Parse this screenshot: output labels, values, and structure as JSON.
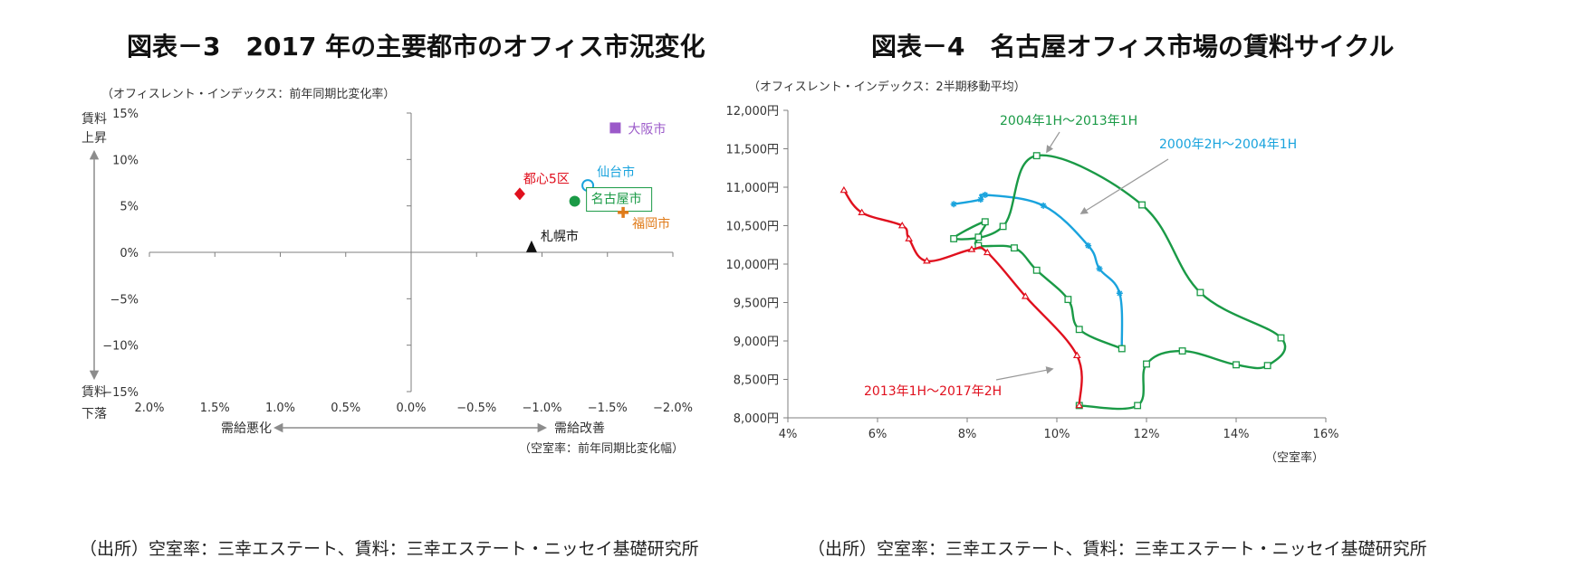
{
  "panels": {
    "left": {
      "title": "図表－3　2017 年の主要都市のオフィス市況変化",
      "source": "（出所）空室率：三幸エステート、賃料：三幸エステート・ニッセイ基礎研究所"
    },
    "right": {
      "title": "図表－4　名古屋オフィス市場の賃料サイクル",
      "source": "（出所）空室率：三幸エステート、賃料：三幸エステート・ニッセイ基礎研究所"
    }
  },
  "colors": {
    "red": "#e0101e",
    "green": "#1a9a46",
    "blue": "#19a3dd",
    "purple": "#9b59c9",
    "orange": "#e07b1a",
    "black": "#111111",
    "axis": "#7f7f7f",
    "arrow": "#8c8c8c"
  },
  "chart_data": [
    {
      "type": "scatter",
      "title": "",
      "ylabel": "（オフィスレント・インデックス：前年同期比変化率）",
      "xlabel": "（空室率：前年同期比変化幅）",
      "xlim": [
        2.0,
        -2.0
      ],
      "ylim": [
        -15,
        15
      ],
      "x_ticks": [
        2.0,
        1.5,
        1.0,
        0.5,
        0.0,
        -0.5,
        -1.0,
        -1.5,
        -2.0
      ],
      "x_tick_labels": [
        "2.0%",
        "1.5%",
        "1.0%",
        "0.5%",
        "0.0%",
        "−0.5%",
        "−1.0%",
        "−1.5%",
        "−2.0%"
      ],
      "y_ticks": [
        15,
        10,
        5,
        0,
        -5,
        -10,
        -15
      ],
      "y_tick_labels": [
        "15%",
        "10%",
        "5%",
        "0%",
        "−5%",
        "−10%",
        "−15%"
      ],
      "side_labels": {
        "up": [
          "賃料",
          "上昇"
        ],
        "down": [
          "賃料",
          "下落"
        ],
        "left": "需給悪化",
        "right": "需給改善"
      },
      "points": [
        {
          "name": "大阪市",
          "x": -1.56,
          "y": 13.4,
          "marker": "square",
          "color": "#9b59c9"
        },
        {
          "name": "仙台市",
          "x": -1.35,
          "y": 7.2,
          "marker": "circle-open",
          "color": "#19a3dd"
        },
        {
          "name": "都心5区",
          "x": -0.83,
          "y": 6.3,
          "marker": "diamond",
          "color": "#e0101e"
        },
        {
          "name": "名古屋市",
          "x": -1.25,
          "y": 5.5,
          "marker": "circle",
          "color": "#1a9a46",
          "boxed": true
        },
        {
          "name": "福岡市",
          "x": -1.62,
          "y": 4.3,
          "marker": "plus",
          "color": "#e07b1a"
        },
        {
          "name": "札幌市",
          "x": -0.92,
          "y": 0.6,
          "marker": "triangle",
          "color": "#111111"
        }
      ]
    },
    {
      "type": "line",
      "title": "",
      "ylabel": "（オフィスレント・インデックス：2半期移動平均）",
      "xlabel": "（空室率）",
      "xlim": [
        4,
        16
      ],
      "ylim": [
        8000,
        12000
      ],
      "x_ticks": [
        4,
        6,
        8,
        10,
        12,
        14,
        16
      ],
      "x_tick_labels": [
        "4%",
        "6%",
        "8%",
        "10%",
        "12%",
        "14%",
        "16%"
      ],
      "y_ticks": [
        8000,
        8500,
        9000,
        9500,
        10000,
        10500,
        11000,
        11500,
        12000
      ],
      "y_tick_labels": [
        "8,000円",
        "8,500円",
        "9,000円",
        "9,500円",
        "10,000円",
        "10,500円",
        "11,000円",
        "11,500円",
        "12,000円"
      ],
      "series": [
        {
          "name": "2000年2H～2004年1H",
          "color": "#19a3dd",
          "marker": "star",
          "points": [
            [
              7.7,
              10780
            ],
            [
              8.3,
              10840
            ],
            [
              8.4,
              10900
            ],
            [
              9.7,
              10760
            ],
            [
              10.7,
              10240
            ],
            [
              10.95,
              9940
            ],
            [
              11.4,
              9620
            ],
            [
              11.45,
              8900
            ]
          ]
        },
        {
          "name": "2004年1H～2013年1H",
          "color": "#1a9a46",
          "marker": "square-open",
          "points": [
            [
              11.45,
              8900
            ],
            [
              10.5,
              9150
            ],
            [
              10.25,
              9540
            ],
            [
              9.55,
              9920
            ],
            [
              9.05,
              10210
            ],
            [
              8.25,
              10240
            ],
            [
              8.25,
              10350
            ],
            [
              8.4,
              10550
            ],
            [
              7.7,
              10330
            ],
            [
              8.8,
              10490
            ],
            [
              9.55,
              11410
            ],
            [
              11.9,
              10770
            ],
            [
              13.2,
              9630
            ],
            [
              15.0,
              9040
            ],
            [
              14.7,
              8680
            ],
            [
              14.0,
              8690
            ],
            [
              12.8,
              8870
            ],
            [
              12.0,
              8700
            ],
            [
              11.8,
              8160
            ],
            [
              10.5,
              8160
            ]
          ]
        },
        {
          "name": "2013年1H～2017年2H",
          "color": "#e0101e",
          "marker": "triangle-open",
          "points": [
            [
              10.5,
              8160
            ],
            [
              10.45,
              8810
            ],
            [
              9.3,
              9580
            ],
            [
              8.45,
              10150
            ],
            [
              8.1,
              10190
            ],
            [
              7.1,
              10040
            ],
            [
              6.7,
              10330
            ],
            [
              6.55,
              10500
            ],
            [
              5.65,
              10670
            ],
            [
              5.25,
              10960
            ]
          ]
        }
      ],
      "annotations": [
        {
          "text": "2004年1H～2013年1H",
          "color": "#1a9a46"
        },
        {
          "text": "2000年2H～2004年1H",
          "color": "#19a3dd"
        },
        {
          "text": "2013年1H～2017年2H",
          "color": "#e0101e"
        }
      ]
    }
  ]
}
